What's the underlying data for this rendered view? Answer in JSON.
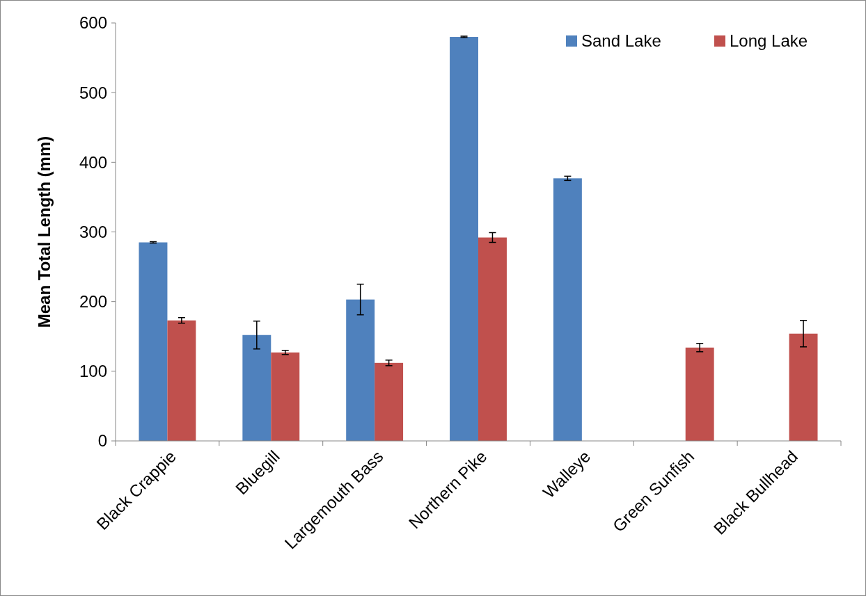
{
  "chart_data": {
    "type": "bar",
    "ylabel": "Mean Total Length (mm)",
    "categories": [
      "Black Crappie",
      "Bluegill",
      "Largemouth Bass",
      "Northern Pike",
      "Walleye",
      "Green Sunfish",
      "Black Bullhead"
    ],
    "series": [
      {
        "name": "Sand Lake",
        "color": "#4f81bd",
        "values": [
          285,
          152,
          203,
          580,
          377,
          0,
          0
        ],
        "errors": [
          1,
          20,
          22,
          1,
          3,
          null,
          null
        ]
      },
      {
        "name": "Long Lake",
        "color": "#c0504d",
        "values": [
          173,
          127,
          112,
          292,
          0,
          134,
          154
        ],
        "errors": [
          4,
          3,
          4,
          7,
          null,
          6,
          19
        ]
      }
    ],
    "ylim": [
      0,
      600
    ],
    "yticks": [
      0,
      100,
      200,
      300,
      400,
      500,
      600
    ],
    "grid": false,
    "legend": "top right"
  }
}
